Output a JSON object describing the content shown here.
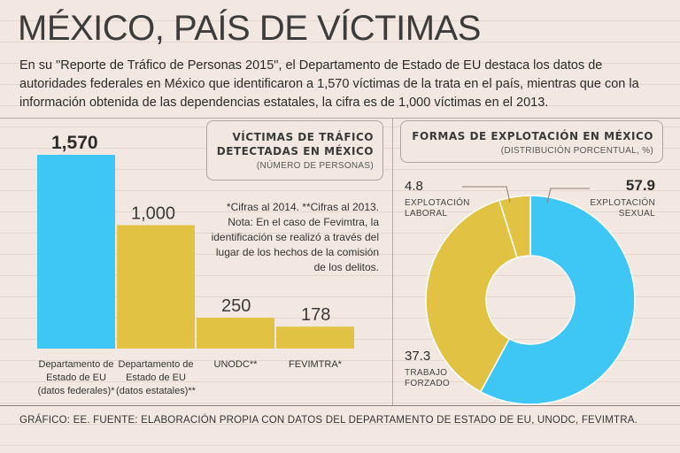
{
  "title": "MÉXICO, PAÍS DE VÍCTIMAS",
  "intro": "En su \"Reporte de Tráfico de Personas 2015\", el Departamento de Estado de EU destaca los datos de autoridades federales en México que identificaron a 1,570 víctimas de la trata en el país, mientras que con la información obtenida de las dependencias estatales, la cifra es de 1,000 víctimas en el 2013.",
  "bar_panel": {
    "title_line1": "VÍCTIMAS DE TRÁFICO",
    "title_line2": "DETECTADAS EN MÉXICO",
    "subtitle": "(NÚMERO DE PERSONAS)",
    "note": "*Cifras al 2014. **Cifras al 2013.\nNota: En el caso de Fevimtra, la identificación se realizó a través del lugar de los hechos de la comisión de los delitos."
  },
  "donut_panel": {
    "title": "FORMAS DE EXPLOTACIÓN EN MÉXICO",
    "subtitle": "(DISTRIBUCIÓN PORCENTUAL, %)"
  },
  "footer": "GRÁFICO: EE. FUENTE: ELABORACIÓN PROPIA CON DATOS DEL DEPARTAMENTO DE ESTADO DE EU, UNODC, FEVIMTRA.",
  "chart_data": [
    {
      "type": "bar",
      "title": "VÍCTIMAS DE TRÁFICO DETECTADAS EN MÉXICO",
      "ylabel": "(NÚMERO DE PERSONAS)",
      "categories": [
        [
          "Departamento de",
          "Estado de EU",
          "(datos federales)*"
        ],
        [
          "Departamento de",
          "Estado de EU",
          "(datos estatales)**"
        ],
        [
          "UNODC**"
        ],
        [
          "FEVIMTRA*"
        ]
      ],
      "values": [
        1570,
        1000,
        250,
        178
      ],
      "labels": [
        "1,570",
        "1,000",
        "250",
        "178"
      ],
      "colors": [
        "#3ec6f4",
        "#e2c242",
        "#e2c242",
        "#e2c242"
      ],
      "ylim": [
        0,
        1570
      ]
    },
    {
      "type": "pie",
      "title": "FORMAS DE EXPLOTACIÓN EN MÉXICO",
      "subtitle": "(DISTRIBUCIÓN PORCENTUAL, %)",
      "slices": [
        {
          "label": [
            "EXPLOTACIÓN",
            "SEXUAL"
          ],
          "value": 57.9,
          "display": "57.9",
          "color": "#3ec6f4"
        },
        {
          "label": [
            "TRABAJO",
            "FORZADO"
          ],
          "value": 37.3,
          "display": "37.3",
          "color": "#e2c242"
        },
        {
          "label": [
            "EXPLOTACIÓN",
            "LABORAL"
          ],
          "value": 4.8,
          "display": "4.8",
          "color": "#e2c242"
        }
      ]
    }
  ]
}
